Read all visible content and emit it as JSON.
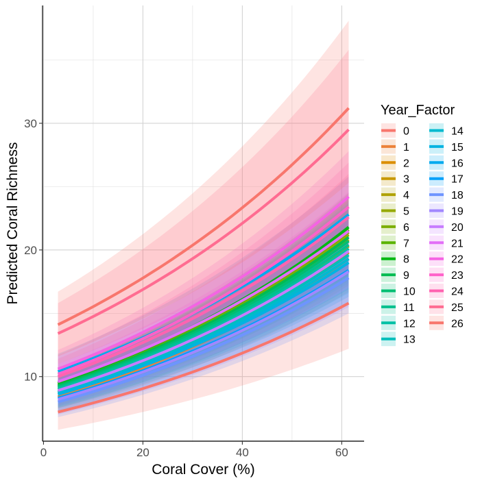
{
  "chart_data": {
    "type": "line",
    "xlabel": "Coral Cover (%)",
    "ylabel": "Predicted Coral Richness",
    "xlim": [
      -0.2,
      64.5
    ],
    "ylim": [
      4.9,
      39.3
    ],
    "x_range": [
      2.9,
      61.4
    ],
    "xticks": [
      0,
      20,
      40,
      60
    ],
    "yticks": [
      10,
      20,
      30
    ],
    "grid": true,
    "legend": {
      "title": "Year_Factor",
      "position": "right",
      "columns": 2
    },
    "series": [
      {
        "name": "0",
        "color": "#F8766D",
        "y_start": 7.2,
        "y_end": 15.8,
        "ci_low_start": 5.8,
        "ci_low_end": 12.2,
        "ci_high_start": 8.6,
        "ci_high_end": 19.6
      },
      {
        "name": "1",
        "color": "#EC8239",
        "y_start": 8.4,
        "y_end": 19.3,
        "ci_low_start": 7.3,
        "ci_low_end": 16.7,
        "ci_high_start": 9.6,
        "ci_high_end": 22.0
      },
      {
        "name": "2",
        "color": "#DB8E00",
        "y_start": 8.6,
        "y_end": 19.8,
        "ci_low_start": 7.5,
        "ci_low_end": 17.2,
        "ci_high_start": 9.8,
        "ci_high_end": 22.5
      },
      {
        "name": "3",
        "color": "#C79800",
        "y_start": 8.8,
        "y_end": 20.3,
        "ci_low_start": 7.7,
        "ci_low_end": 17.6,
        "ci_high_start": 10.0,
        "ci_high_end": 23.0
      },
      {
        "name": "4",
        "color": "#AFA100",
        "y_start": 9.0,
        "y_end": 20.8,
        "ci_low_start": 7.9,
        "ci_low_end": 18.1,
        "ci_high_start": 10.2,
        "ci_high_end": 23.5
      },
      {
        "name": "5",
        "color": "#96A900",
        "y_start": 9.2,
        "y_end": 21.2,
        "ci_low_start": 8.1,
        "ci_low_end": 18.5,
        "ci_high_start": 10.4,
        "ci_high_end": 23.9
      },
      {
        "name": "6",
        "color": "#7BAE00",
        "y_start": 9.3,
        "y_end": 21.4,
        "ci_low_start": 8.2,
        "ci_low_end": 18.7,
        "ci_high_start": 10.5,
        "ci_high_end": 24.1
      },
      {
        "name": "7",
        "color": "#5BB300",
        "y_start": 9.4,
        "y_end": 21.6,
        "ci_low_start": 8.3,
        "ci_low_end": 18.9,
        "ci_high_start": 10.6,
        "ci_high_end": 24.3
      },
      {
        "name": "8",
        "color": "#00B813",
        "y_start": 9.5,
        "y_end": 21.8,
        "ci_low_start": 8.4,
        "ci_low_end": 19.1,
        "ci_high_start": 10.7,
        "ci_high_end": 24.5
      },
      {
        "name": "9",
        "color": "#00BC51",
        "y_start": 9.3,
        "y_end": 21.0,
        "ci_low_start": 8.2,
        "ci_low_end": 18.3,
        "ci_high_start": 10.5,
        "ci_high_end": 23.7
      },
      {
        "name": "10",
        "color": "#00BE72",
        "y_start": 9.2,
        "y_end": 20.7,
        "ci_low_start": 8.1,
        "ci_low_end": 18.0,
        "ci_high_start": 10.4,
        "ci_high_end": 23.4
      },
      {
        "name": "11",
        "color": "#00C08D",
        "y_start": 9.1,
        "y_end": 20.4,
        "ci_low_start": 8.0,
        "ci_low_end": 17.7,
        "ci_high_start": 10.3,
        "ci_high_end": 23.1
      },
      {
        "name": "12",
        "color": "#00C0A5",
        "y_start": 9.0,
        "y_end": 20.1,
        "ci_low_start": 7.9,
        "ci_low_end": 17.4,
        "ci_high_start": 10.2,
        "ci_high_end": 22.8
      },
      {
        "name": "13",
        "color": "#00BEBB",
        "y_start": 8.8,
        "y_end": 19.6,
        "ci_low_start": 7.7,
        "ci_low_end": 16.9,
        "ci_high_start": 10.0,
        "ci_high_end": 22.3
      },
      {
        "name": "14",
        "color": "#00BACF",
        "y_start": 8.7,
        "y_end": 19.3,
        "ci_low_start": 7.6,
        "ci_low_end": 16.6,
        "ci_high_start": 9.9,
        "ci_high_end": 22.0
      },
      {
        "name": "15",
        "color": "#00B3E1",
        "y_start": 8.6,
        "y_end": 19.0,
        "ci_low_start": 7.5,
        "ci_low_end": 16.3,
        "ci_high_start": 9.8,
        "ci_high_end": 21.7
      },
      {
        "name": "16",
        "color": "#00AAEF",
        "y_start": 10.4,
        "y_end": 22.8,
        "ci_low_start": 9.1,
        "ci_low_end": 19.8,
        "ci_high_start": 11.8,
        "ci_high_end": 25.8
      },
      {
        "name": "17",
        "color": "#00A0FA",
        "y_start": 8.3,
        "y_end": 18.4,
        "ci_low_start": 7.2,
        "ci_low_end": 15.7,
        "ci_high_start": 9.5,
        "ci_high_end": 21.1
      },
      {
        "name": "18",
        "color": "#6E94FF",
        "y_start": 8.0,
        "y_end": 17.8,
        "ci_low_start": 6.8,
        "ci_low_end": 15.0,
        "ci_high_start": 9.3,
        "ci_high_end": 20.6
      },
      {
        "name": "19",
        "color": "#A187FF",
        "y_start": 8.2,
        "y_end": 18.3,
        "ci_low_start": 7.0,
        "ci_low_end": 15.5,
        "ci_high_start": 9.5,
        "ci_high_end": 21.1
      },
      {
        "name": "20",
        "color": "#C77CFF",
        "y_start": 8.9,
        "y_end": 19.9,
        "ci_low_start": 7.7,
        "ci_low_end": 17.0,
        "ci_high_start": 10.2,
        "ci_high_end": 22.8
      },
      {
        "name": "21",
        "color": "#E26EF7",
        "y_start": 9.6,
        "y_end": 21.5,
        "ci_low_start": 8.3,
        "ci_low_end": 18.4,
        "ci_high_start": 11.0,
        "ci_high_end": 24.6
      },
      {
        "name": "22",
        "color": "#F564E3",
        "y_start": 10.6,
        "y_end": 24.2,
        "ci_low_start": 9.1,
        "ci_low_end": 20.6,
        "ci_high_start": 12.1,
        "ci_high_end": 27.8
      },
      {
        "name": "23",
        "color": "#FF61C9",
        "y_start": 10.2,
        "y_end": 23.4,
        "ci_low_start": 8.8,
        "ci_low_end": 19.9,
        "ci_high_start": 11.7,
        "ci_high_end": 26.9
      },
      {
        "name": "24",
        "color": "#FF63B0",
        "y_start": 10.0,
        "y_end": 22.6,
        "ci_low_start": 8.6,
        "ci_low_end": 19.2,
        "ci_high_start": 11.4,
        "ci_high_end": 26.0
      },
      {
        "name": "25",
        "color": "#FF6C91",
        "y_start": 13.4,
        "y_end": 29.5,
        "ci_low_start": 11.0,
        "ci_low_end": 23.8,
        "ci_high_start": 15.8,
        "ci_high_end": 35.8
      },
      {
        "name": "26",
        "color": "#F8766D",
        "y_start": 14.1,
        "y_end": 31.2,
        "ci_low_start": 11.6,
        "ci_low_end": 25.3,
        "ci_high_start": 16.7,
        "ci_high_end": 38.1
      }
    ]
  }
}
